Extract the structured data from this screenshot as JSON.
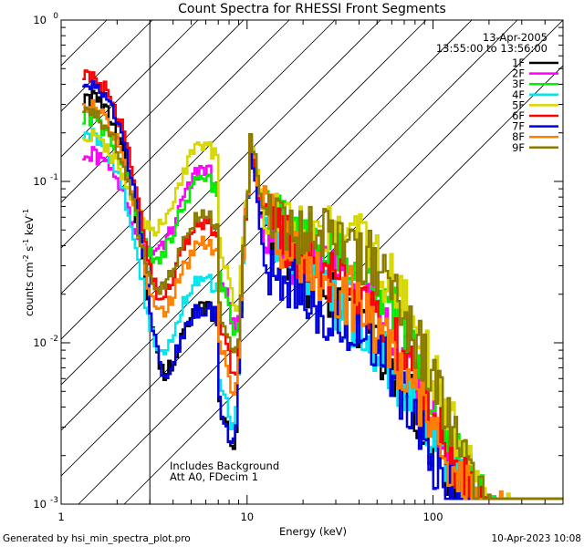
{
  "chart_data": {
    "type": "line",
    "title": "Count Spectra for RHESSI Front Segments",
    "xlabel": "Energy (keV)",
    "ylabel_parts": [
      "counts cm",
      "-2",
      " s",
      "-1",
      " keV",
      "-1"
    ],
    "xscale": "log",
    "yscale": "log",
    "xlim": [
      1,
      500
    ],
    "ylim": [
      0.001,
      1
    ],
    "x_ticks": [
      {
        "v": 1,
        "label": "1"
      },
      {
        "v": 10,
        "label": "10"
      },
      {
        "v": 100,
        "label": "100"
      }
    ],
    "y_ticks": [
      {
        "v": 1,
        "base": "10",
        "exp": "0"
      },
      {
        "v": 0.1,
        "base": "10",
        "exp": "-1"
      },
      {
        "v": 0.01,
        "base": "10",
        "exp": "-2"
      },
      {
        "v": 0.001,
        "base": "10",
        "exp": "-3"
      }
    ],
    "date": "13-Apr-2005",
    "time_range": "13:55:00 to 13:56:00",
    "annotations": [
      "Includes Background",
      "Att A0, FDecim 1"
    ],
    "shaded_region_max_keV": 3,
    "series": [
      {
        "name": "1F",
        "color": "#000000",
        "lowAmp": 0.33,
        "floor": 0.012,
        "bump": 0.028,
        "hiScale": 0.85
      },
      {
        "name": "2F",
        "color": "#ff00ff",
        "lowAmp": 0.12,
        "floor": 0.085,
        "bump": 0.085,
        "hiScale": 0.75
      },
      {
        "name": "3F",
        "color": "#00ee00",
        "lowAmp": 0.22,
        "floor": 0.075,
        "bump": 0.08,
        "hiScale": 1.05
      },
      {
        "name": "4F",
        "color": "#00e5ee",
        "lowAmp": 0.19,
        "floor": 0.018,
        "bump": 0.02,
        "hiScale": 1.0
      },
      {
        "name": "5F",
        "color": "#d6d600",
        "lowAmp": 0.15,
        "floor": 0.12,
        "bump": 0.12,
        "hiScale": 1.1
      },
      {
        "name": "6F",
        "color": "#ff0000",
        "lowAmp": 0.43,
        "floor": 0.04,
        "bump": 0.05,
        "hiScale": 0.95
      },
      {
        "name": "7F",
        "color": "#0000dd",
        "lowAmp": 0.39,
        "floor": 0.012,
        "bump": 0.05,
        "hiScale": 0.55
      },
      {
        "name": "8F",
        "color": "#ff7f00",
        "lowAmp": 0.29,
        "floor": 0.03,
        "bump": 0.035,
        "hiScale": 1.0
      },
      {
        "name": "9F",
        "color": "#8b7a00",
        "lowAmp": 0.25,
        "floor": 0.045,
        "bump": 0.13,
        "hiScale": 0.95
      }
    ]
  },
  "footer": {
    "left": "Generated by hsi_min_spectra_plot.pro",
    "right": "10-Apr-2023 10:08"
  }
}
